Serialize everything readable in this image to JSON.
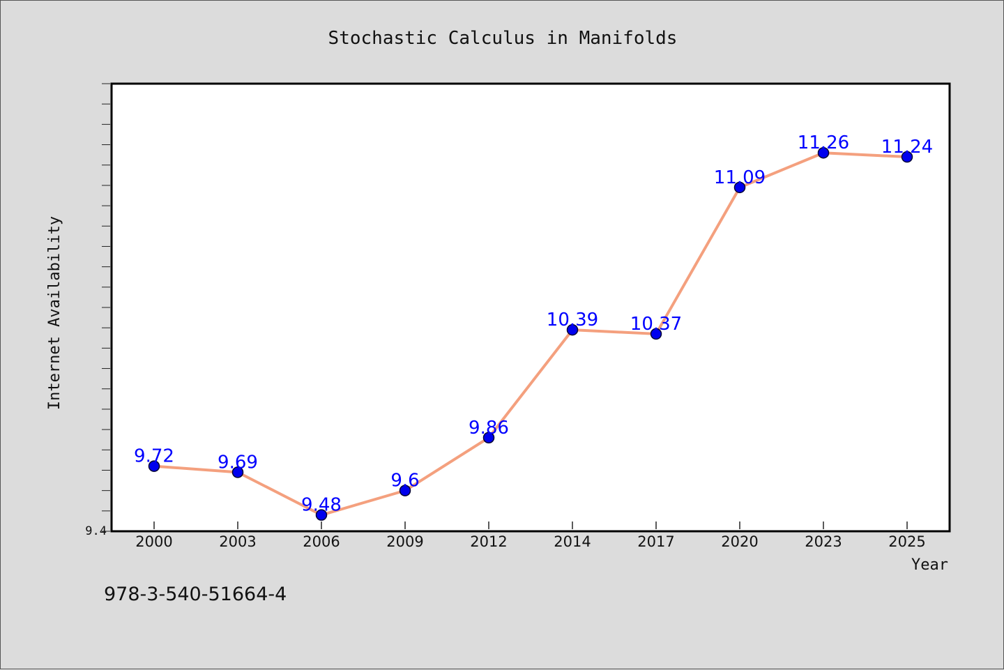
{
  "chart_data": {
    "type": "line",
    "title": "Stochastic Calculus in Manifolds",
    "xlabel": "Year",
    "ylabel": "Internet Availability",
    "categories": [
      "2000",
      "2003",
      "2006",
      "2009",
      "2012",
      "2014",
      "2017",
      "2020",
      "2023",
      "2025"
    ],
    "series": [
      {
        "values": [
          9.72,
          9.69,
          9.48,
          9.6,
          9.86,
          10.39,
          10.37,
          11.09,
          11.26,
          11.24
        ]
      }
    ],
    "data_labels": [
      "9.72",
      "9.69",
      "9.48",
      "9.6",
      "9.86",
      "10.39",
      "10.37",
      "11.09",
      "11.26",
      "11.24"
    ],
    "y_tick_labels": [
      "9.4"
    ],
    "ylim": [
      9.4,
      11.6
    ],
    "y_minor_tick_step": 0.1,
    "grid": false,
    "legend": "none",
    "colors": {
      "line": "#f4a07e",
      "marker_fill": "#0000ee",
      "marker_edge": "#000033",
      "data_label": "#0000ff",
      "plot_background": "#ffffff",
      "figure_background": "#dcdcdc"
    }
  },
  "footer": {
    "isbn": "978-3-540-51664-4"
  }
}
